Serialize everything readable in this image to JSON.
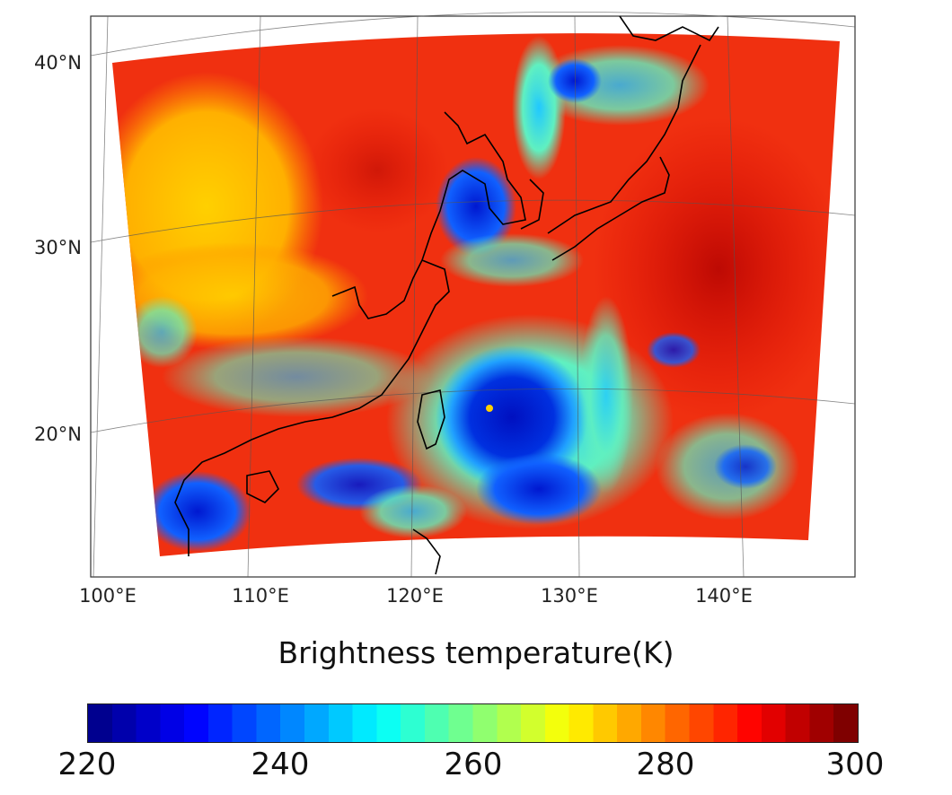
{
  "map": {
    "region": "East Asia / Western North Pacific",
    "projection": "conic",
    "variable": "Brightness temperature",
    "features": [
      "typhoon eye east of Taiwan",
      "cloud bands",
      "coastlines"
    ],
    "lat_labels": [
      "40°N",
      "30°N",
      "20°N"
    ],
    "lon_labels": [
      "100°E",
      "110°E",
      "120°E",
      "130°E",
      "140°E"
    ]
  },
  "colorbar": {
    "title": "Brightness temperature(K)",
    "min": 220,
    "max": 300,
    "ticks": [
      "220",
      "240",
      "260",
      "280",
      "300"
    ],
    "colormap": "jet",
    "colors": [
      "#00008f",
      "#0000ff",
      "#007fff",
      "#00ffff",
      "#7fff7f",
      "#ffff00",
      "#ff7f00",
      "#ff0000",
      "#7f0000"
    ]
  }
}
